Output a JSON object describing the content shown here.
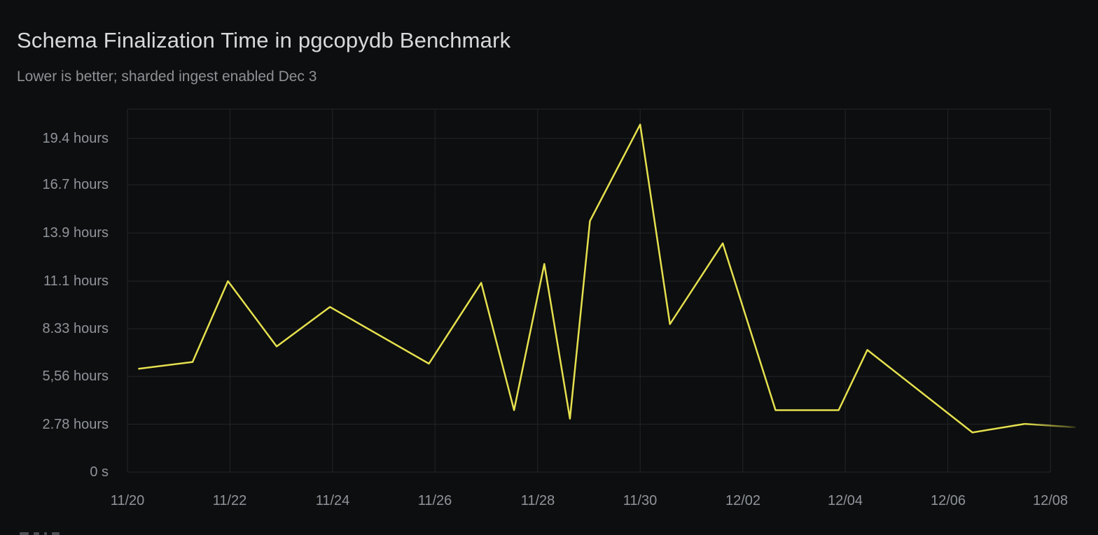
{
  "panel": {
    "title": "Schema Finalization Time in pgcopydb Benchmark",
    "subtitle": "Lower is better; sharded ingest enabled Dec 3"
  },
  "colors": {
    "background": "#0d0e0f",
    "gridline": "#232529",
    "tick_label": "#8f949b",
    "title_text": "#d8d9da",
    "subtitle_text": "#8e9196",
    "series_yellow": "#e5e04e"
  },
  "chart_data": {
    "type": "line",
    "title": "Schema Finalization Time in pgcopydb Benchmark",
    "subtitle": "Lower is better; sharded ingest enabled Dec 3",
    "xlabel": "",
    "ylabel": "",
    "grid": true,
    "legend_position": "bottom-left, clipped below panel edge",
    "x_tick_labels": [
      "11/20",
      "11/22",
      "11/24",
      "11/26",
      "11/28",
      "11/30",
      "12/02",
      "12/04",
      "12/06",
      "12/08"
    ],
    "x_tick_days": [
      0,
      2,
      4,
      6,
      8,
      10,
      12,
      14,
      16,
      18
    ],
    "xlim_days": [
      0,
      18
    ],
    "y_tick_labels": [
      "0 s",
      "2.78 hours",
      "5,56 hours",
      "8.33 hours",
      "11.1 hours",
      "13.9 hours",
      "16.7 hours",
      "19.4 hours"
    ],
    "y_tick_hours": [
      0,
      2.78,
      5.56,
      8.33,
      11.1,
      13.9,
      16.7,
      19.4
    ],
    "ylim_hours": [
      0,
      21.1
    ],
    "series": [
      {
        "name": "schema finalization time",
        "color": "#e5e04e",
        "x_days": [
          0.21,
          1.27,
          1.96,
          2.91,
          3.95,
          5.88,
          6.9,
          7.54,
          8.13,
          8.63,
          9.02,
          10.0,
          10.58,
          11.61,
          12.64,
          13.87,
          14.43,
          16.48,
          17.5,
          18.49
        ],
        "hours": [
          6.0,
          6.4,
          11.1,
          7.3,
          9.6,
          6.3,
          11.0,
          3.6,
          12.1,
          3.1,
          14.6,
          20.2,
          8.6,
          13.3,
          3.6,
          3.6,
          7.1,
          2.3,
          2.8,
          2.6
        ],
        "fade_tail_from_day": 17.5
      }
    ]
  }
}
